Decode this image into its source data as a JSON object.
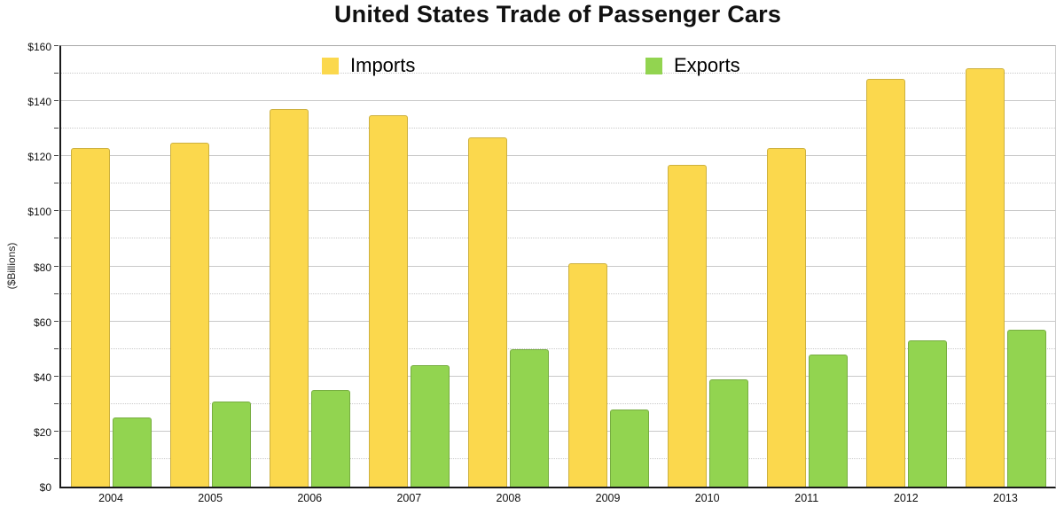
{
  "chart_data": {
    "type": "bar",
    "title": "United States Trade of Passenger Cars",
    "ylabel": "($Billions)",
    "xlabel": "",
    "categories": [
      "2004",
      "2005",
      "2006",
      "2007",
      "2008",
      "2009",
      "2010",
      "2011",
      "2012",
      "2013"
    ],
    "series": [
      {
        "name": "Imports",
        "color": "#FBD84D",
        "values": [
          123,
          125,
          137,
          135,
          127,
          81,
          117,
          123,
          148,
          152
        ]
      },
      {
        "name": "Exports",
        "color": "#92D450",
        "values": [
          25,
          31,
          35,
          44,
          50,
          28,
          39,
          48,
          53,
          57
        ]
      }
    ],
    "ylim": [
      0,
      160
    ],
    "ytick_step": 20,
    "yminor_step": 10,
    "ytick_prefix": "$",
    "ytick_labels": [
      "$0",
      "$20",
      "$40",
      "$60",
      "$80",
      "$100",
      "$120",
      "$140",
      "$160"
    ],
    "grid": true,
    "legend_position": "top-inside"
  }
}
